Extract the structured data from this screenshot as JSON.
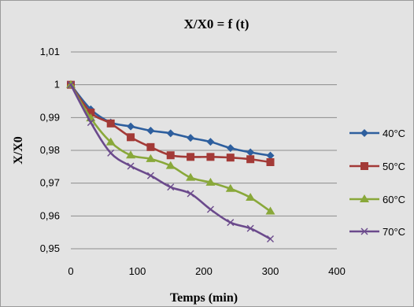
{
  "chart_data": {
    "type": "line",
    "title": "X/X0 = f (t)",
    "xlabel": "Temps (min)",
    "ylabel": "X/X0",
    "xlim": [
      0,
      400
    ],
    "ylim": [
      0.95,
      1.01
    ],
    "xticks": [
      0,
      100,
      200,
      300,
      400
    ],
    "yticks": [
      0.95,
      0.96,
      0.97,
      0.98,
      0.99,
      1,
      1.01
    ],
    "ytick_labels": [
      "0,95",
      "0,96",
      "0,97",
      "0,98",
      "0,99",
      "1",
      "1,01"
    ],
    "xtick_labels": [
      "0",
      "100",
      "200",
      "300",
      "400"
    ],
    "grid": "horizontal",
    "legend_position": "right",
    "background": "#e3e3e3",
    "x": [
      0,
      30,
      60,
      90,
      120,
      150,
      180,
      210,
      240,
      270,
      300
    ],
    "series": [
      {
        "name": "40°C",
        "marker": "diamond",
        "color": "#2e5f9e",
        "values": [
          1.0,
          0.9925,
          0.9885,
          0.9873,
          0.986,
          0.9852,
          0.9838,
          0.9826,
          0.9807,
          0.9794,
          0.9784
        ]
      },
      {
        "name": "50°C",
        "marker": "square",
        "color": "#a33a37",
        "values": [
          1.0,
          0.9915,
          0.9882,
          0.984,
          0.981,
          0.9785,
          0.978,
          0.978,
          0.9778,
          0.9773,
          0.9764
        ]
      },
      {
        "name": "60°C",
        "marker": "triangle",
        "color": "#89a83a",
        "values": [
          1.0,
          0.9898,
          0.9825,
          0.9785,
          0.9774,
          0.9753,
          0.9717,
          0.9702,
          0.9683,
          0.9656,
          0.9614
        ]
      },
      {
        "name": "70°C",
        "marker": "x",
        "color": "#6b4a8c",
        "values": [
          1.0,
          0.9885,
          0.9792,
          0.9752,
          0.9723,
          0.9688,
          0.9668,
          0.962,
          0.958,
          0.9562,
          0.953
        ]
      }
    ]
  }
}
